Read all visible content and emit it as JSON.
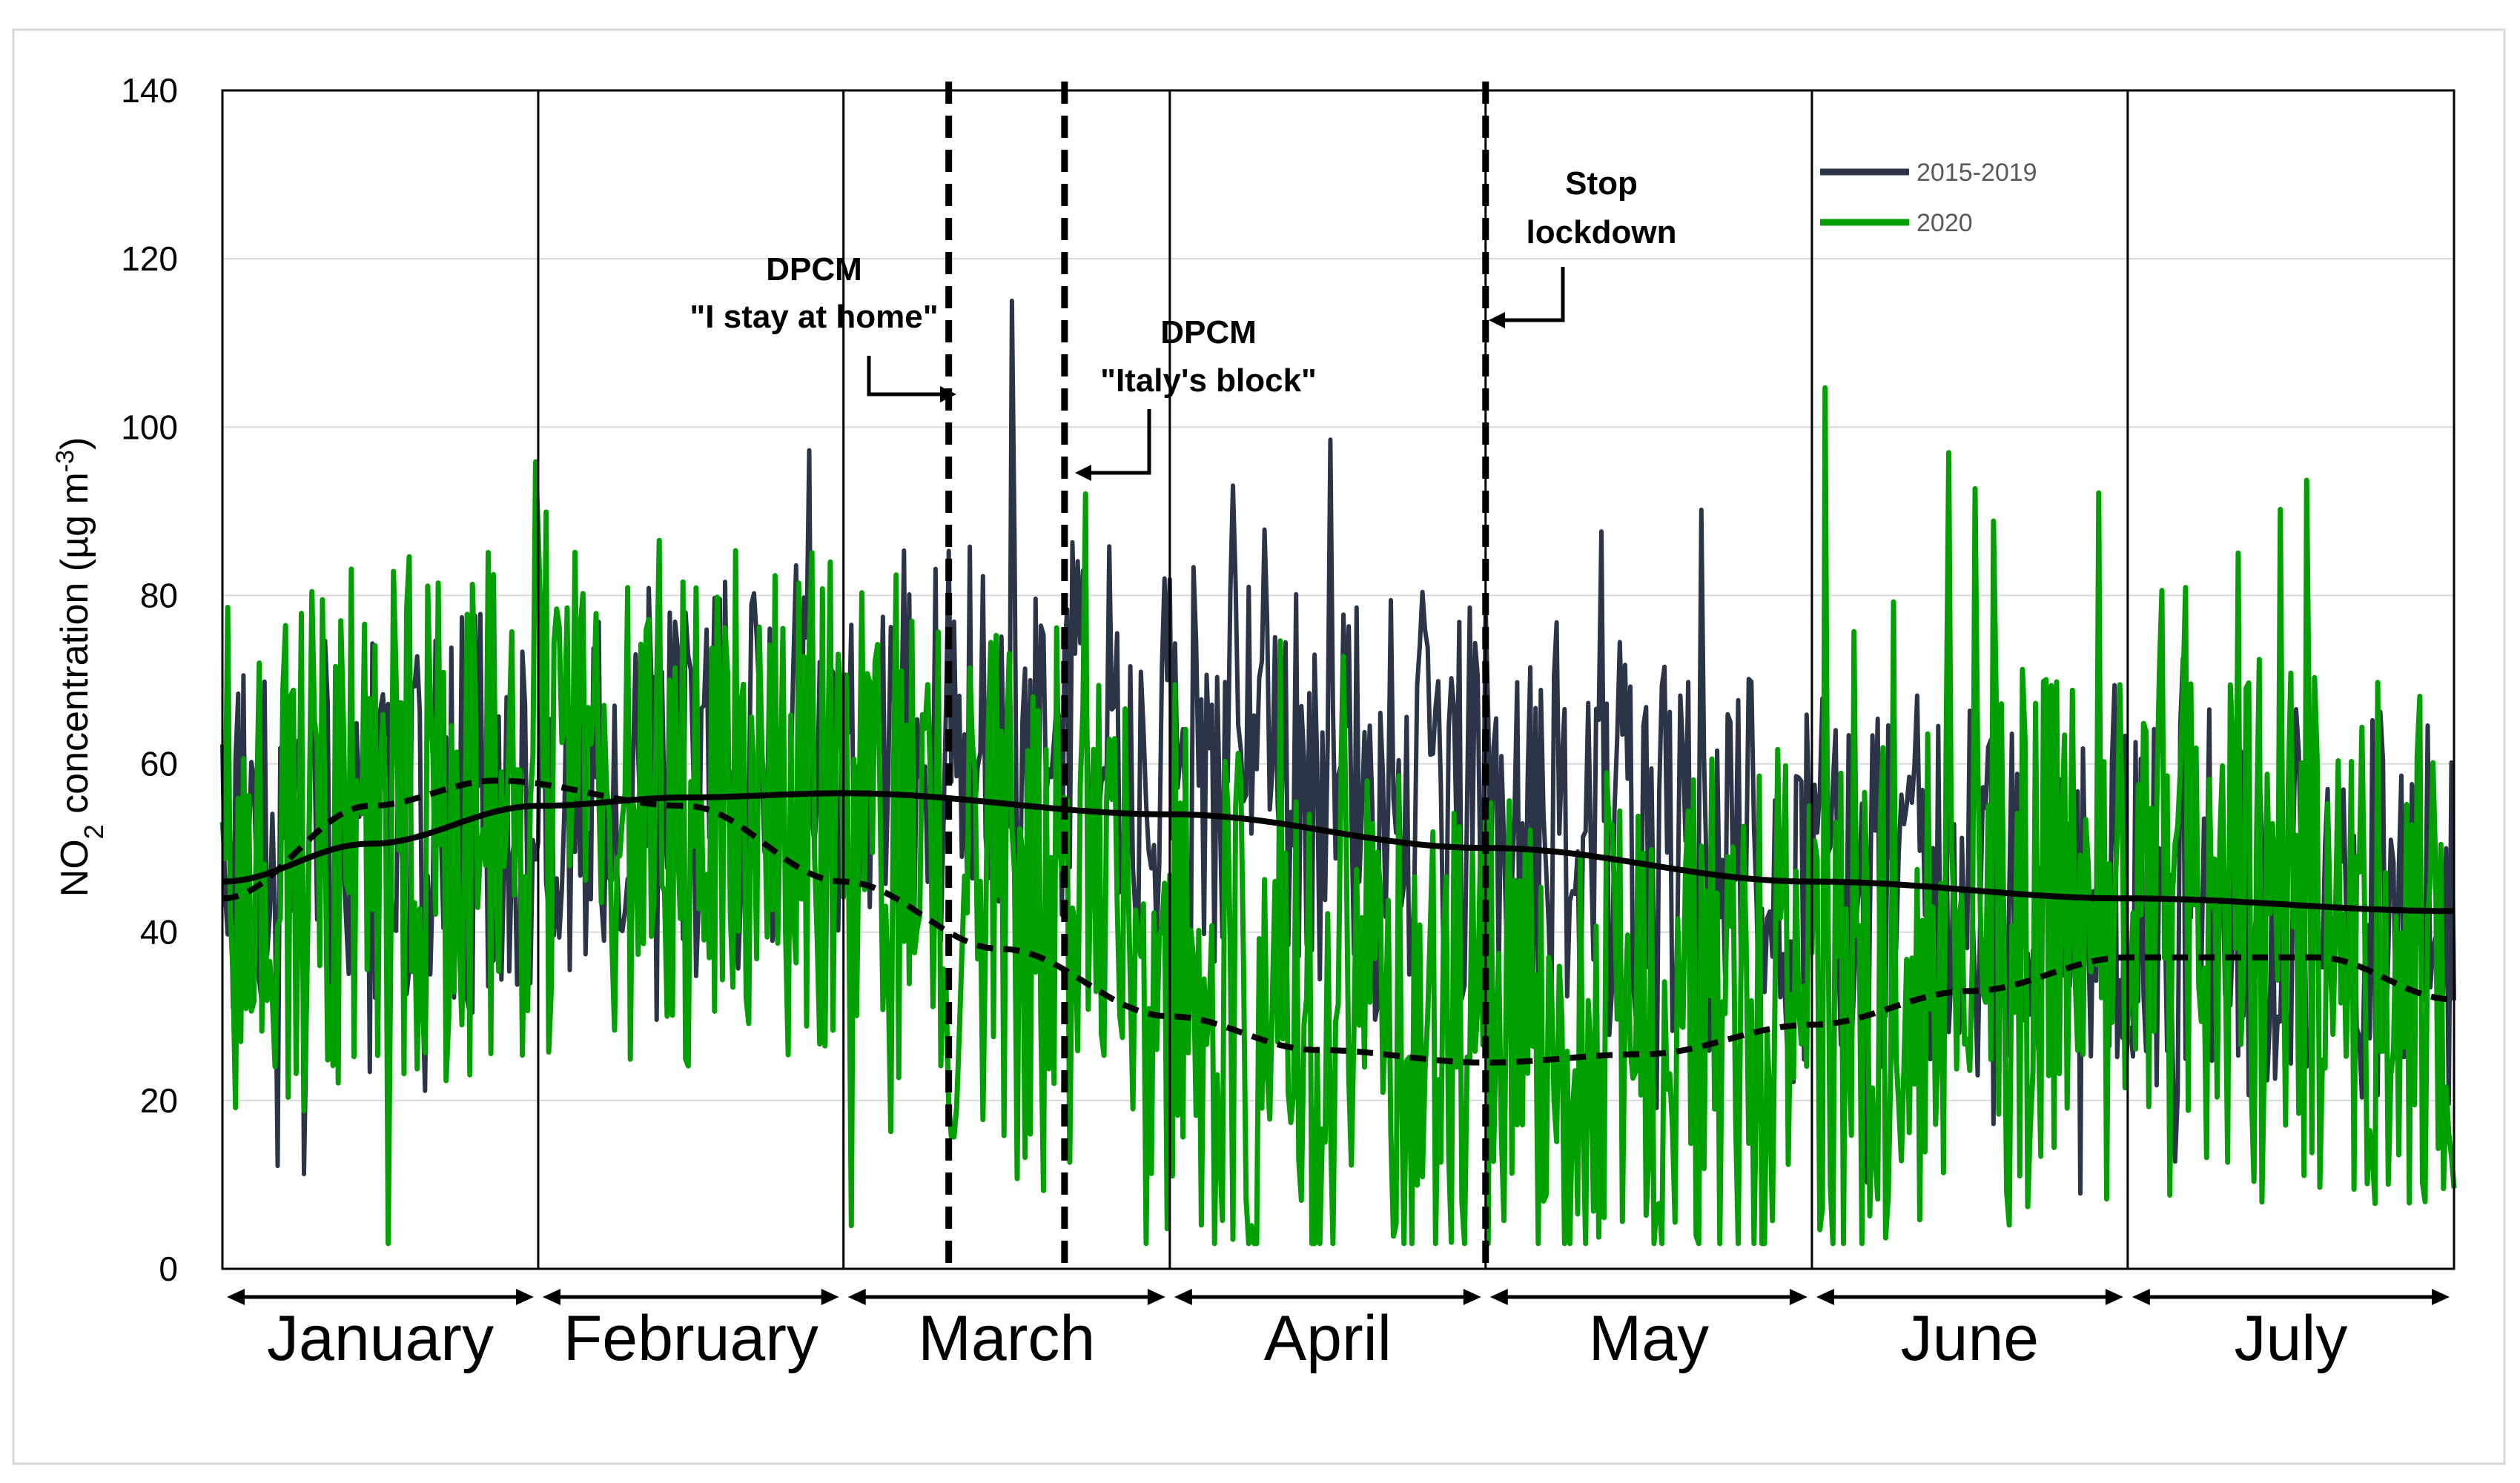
{
  "chart_data": {
    "type": "line",
    "title": "",
    "ylabel": "NO",
    "ylabel_sub": "2",
    "ylabel_rest": " concentration (µg m",
    "ylabel_sup": "-3",
    "ylabel_end": ")",
    "ylim": [
      0,
      140
    ],
    "yticks": [
      "0",
      "20",
      "40",
      "60",
      "80",
      "100",
      "120",
      "140"
    ],
    "xlim_days": [
      1,
      213
    ],
    "months": [
      {
        "name": "January",
        "start": 1,
        "end": 31
      },
      {
        "name": "February",
        "start": 31,
        "end": 60
      },
      {
        "name": "March",
        "start": 60,
        "end": 91
      },
      {
        "name": "April",
        "start": 91,
        "end": 121
      },
      {
        "name": "May",
        "start": 121,
        "end": 152
      },
      {
        "name": "June",
        "start": 152,
        "end": 182
      },
      {
        "name": "July",
        "start": 182,
        "end": 213
      }
    ],
    "grid": true,
    "legend_position": "top-right",
    "series": [
      {
        "name": "2015-2019",
        "color": "#2b3547",
        "base_trend": {
          "days": [
            1,
            31,
            60,
            91,
            121,
            152,
            182,
            213
          ],
          "values": [
            52,
            55,
            62,
            63,
            55,
            45,
            44,
            43
          ]
        },
        "spread": 15
      },
      {
        "name": "2020",
        "color": "#00a000",
        "base_trend": {
          "days": [
            1,
            31,
            60,
            80,
            100,
            121,
            150,
            182,
            213
          ],
          "values": [
            48,
            56,
            55,
            40,
            28,
            26,
            32,
            40,
            38
          ]
        },
        "spread": 20
      }
    ],
    "trend_lines": [
      {
        "style": "solid",
        "color": "#000000",
        "days": [
          1,
          15,
          31,
          45,
          60,
          91,
          121,
          152,
          182,
          213
        ],
        "values": [
          46,
          50.5,
          55,
          56,
          56.5,
          54,
          50,
          46,
          44,
          42.5
        ]
      },
      {
        "style": "dashed",
        "color": "#000000",
        "days": [
          1,
          15,
          27,
          45,
          60,
          75,
          91,
          105,
          121,
          136,
          152,
          167,
          182,
          200,
          213
        ],
        "values": [
          44,
          55,
          58,
          55,
          46,
          38,
          30,
          26,
          24.5,
          25.5,
          29,
          33,
          37,
          37,
          32
        ]
      }
    ],
    "event_lines": [
      {
        "day": 70,
        "label_lines": [
          "DPCM",
          "\"I stay at home\""
        ]
      },
      {
        "day": 81,
        "label_lines": [
          "DPCM",
          "\"Italy's block\""
        ]
      },
      {
        "day": 121,
        "label_lines": [
          "Stop",
          "lockdown"
        ]
      }
    ]
  }
}
